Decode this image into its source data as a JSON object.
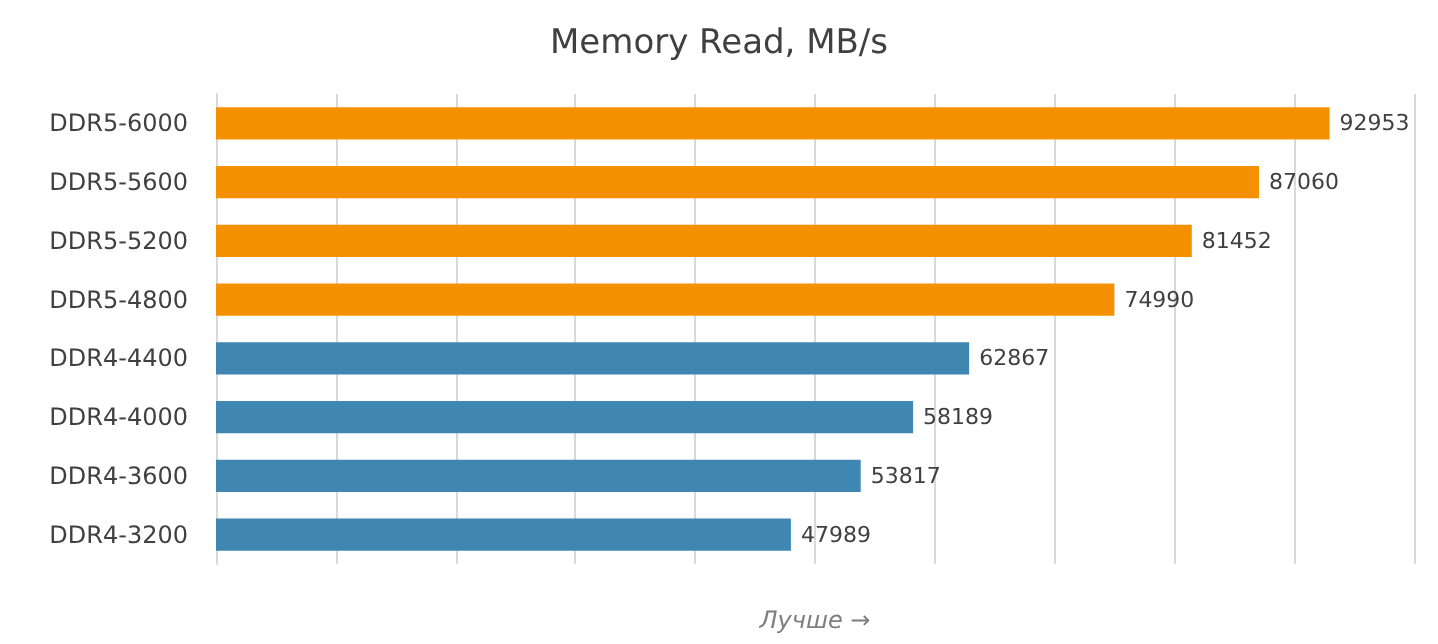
{
  "chart_data": {
    "type": "bar",
    "orientation": "horizontal",
    "title": "Memory Read, MB/s",
    "xlabel": "Лучше →",
    "categories": [
      "DDR5-6000",
      "DDR5-5600",
      "DDR5-5200",
      "DDR5-4800",
      "DDR4-4400",
      "DDR4-4000",
      "DDR4-3600",
      "DDR4-3200"
    ],
    "values": [
      92953,
      87060,
      81452,
      74990,
      62867,
      58189,
      53817,
      47989
    ],
    "colors": [
      "#f59100",
      "#f59100",
      "#f59100",
      "#f59100",
      "#3f87b2",
      "#3f87b2",
      "#3f87b2",
      "#3f87b2"
    ],
    "xlim": [
      0,
      100000
    ],
    "xticks": [
      {
        "value": 0,
        "label": null
      },
      {
        "value": 10000,
        "label": null
      },
      {
        "value": 20000,
        "label": null
      },
      {
        "value": 30000,
        "label": null
      },
      {
        "value": 40000,
        "label": null
      },
      {
        "value": 50000,
        "label": null
      },
      {
        "value": 60000,
        "label": null
      },
      {
        "value": 70000,
        "label": null
      },
      {
        "value": 80000,
        "label": null
      },
      {
        "value": 90000,
        "label": null
      },
      {
        "value": 100000,
        "label": null
      }
    ],
    "grid": "x",
    "tick_labels": "y",
    "data_labels": true
  }
}
